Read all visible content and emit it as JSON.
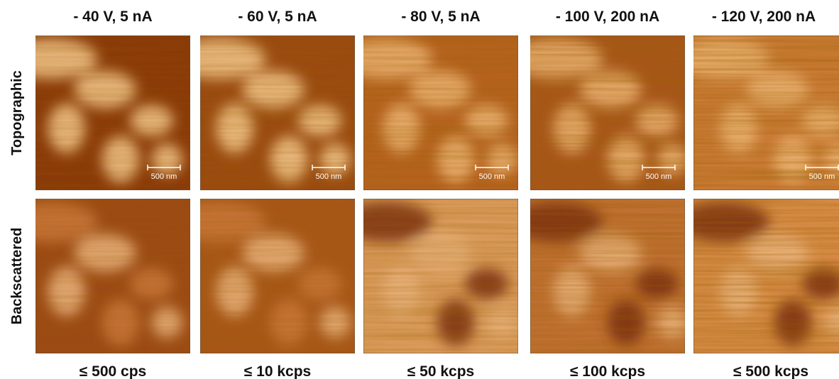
{
  "rows": [
    "Topographic",
    "Backscattered"
  ],
  "columns": [
    {
      "header": "- 40 V, 5 nA",
      "scale_bar": "500 nm",
      "footer": "≤ 500 cps"
    },
    {
      "header": "- 60 V, 5 nA",
      "scale_bar": "500 nm",
      "footer": "≤ 10 kcps"
    },
    {
      "header": "- 80 V, 5 nA",
      "scale_bar": "500 nm",
      "footer": "≤ 50 kcps"
    },
    {
      "header": "- 100 V, 200 nA",
      "scale_bar": "500 nm",
      "footer": "≤ 100 kcps"
    },
    {
      "header": "- 120 V, 200 nA",
      "scale_bar": "500 nm",
      "footer": "≤ 500 kcps"
    }
  ]
}
